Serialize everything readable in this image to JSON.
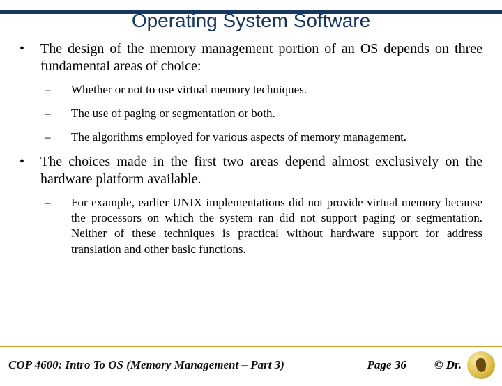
{
  "colors": {
    "accent_dark_blue": "#17375e",
    "rule_gold": "#c0a030",
    "text_black": "#000000",
    "background": "#ffffff"
  },
  "typography": {
    "title_font": "Arial",
    "title_size_pt": 28,
    "body_font": "Times New Roman",
    "body_size_pt": 20,
    "sub_size_pt": 17,
    "footer_size_pt": 17,
    "footer_style": "bold italic"
  },
  "slide": {
    "title": "Operating System Software",
    "bullets": [
      {
        "marker": "•",
        "text": "The design of the memory management portion of an OS depends on three fundamental areas of choice:",
        "subs": [
          {
            "marker": "–",
            "text": "Whether or not to use virtual memory techniques."
          },
          {
            "marker": "–",
            "text": "The use of paging or segmentation or both."
          },
          {
            "marker": "–",
            "text": "The algorithms employed for various aspects of memory management."
          }
        ]
      },
      {
        "marker": "•",
        "text": "The choices made in the first two areas depend almost exclusively on the hardware platform available.",
        "subs": [
          {
            "marker": "–",
            "text": "For example, earlier UNIX implementations did not provide virtual memory because the processors on which the system ran did not support paging or segmentation.  Neither of these techniques is practical without hardware support for address translation and other basic functions."
          }
        ]
      }
    ]
  },
  "footer": {
    "course": "COP 4600: Intro To OS  (Memory Management – Part 3)",
    "page": "Page 36",
    "copyright": "© Dr."
  }
}
